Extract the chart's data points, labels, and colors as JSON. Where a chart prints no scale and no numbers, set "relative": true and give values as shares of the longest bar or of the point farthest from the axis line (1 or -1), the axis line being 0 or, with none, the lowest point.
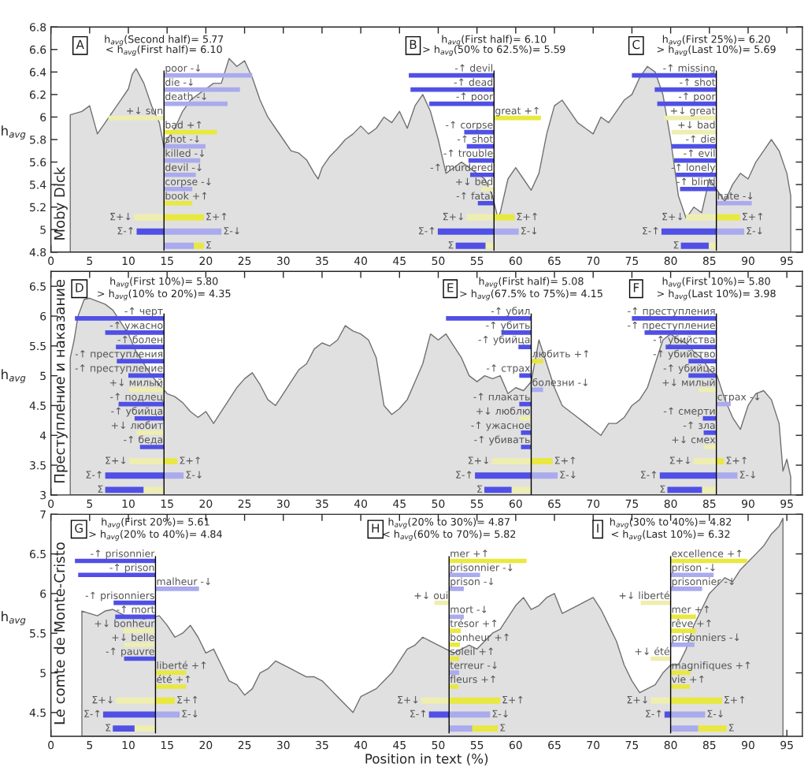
{
  "chart_data": [
    {
      "type": "area",
      "color": "#e0e0e0",
      "ylabel": "h$_{avg}$",
      "annotations": [
        "Moby Dick"
      ],
      "xlim": [
        0,
        97
      ],
      "xticks": [
        0,
        5,
        10,
        15,
        20,
        25,
        30,
        35,
        40,
        45,
        50,
        55,
        60,
        65,
        70,
        75,
        80,
        85,
        90,
        95
      ],
      "ylim": [
        4.8,
        6.8
      ],
      "yticks": [
        4.8,
        5,
        5.2,
        5.4,
        5.6,
        5.8,
        6,
        6.2,
        6.4,
        6.6,
        6.8
      ],
      "x": [
        2.5,
        4,
        5,
        6,
        7,
        8,
        9,
        10,
        10.5,
        11,
        12,
        13,
        14,
        14.6,
        15,
        16,
        17,
        18,
        19,
        20,
        21,
        22,
        23,
        24,
        25,
        26,
        27,
        28,
        29,
        30,
        31,
        32,
        33,
        34,
        34.5,
        35,
        36,
        37,
        38,
        39,
        40,
        41,
        42,
        43,
        44,
        45,
        46,
        47,
        48,
        49,
        50,
        51,
        52,
        53,
        54,
        55,
        56,
        57,
        57.7,
        58,
        59,
        60,
        61,
        62,
        63,
        64,
        65,
        66,
        67,
        68,
        69,
        70,
        71,
        72,
        73,
        74,
        75,
        76,
        77,
        78,
        79,
        80,
        81,
        82,
        83,
        84,
        85,
        86,
        87,
        88,
        89,
        90,
        91,
        92,
        93,
        94,
        95,
        95.5
      ],
      "values": [
        6.02,
        6.05,
        6.1,
        5.85,
        5.95,
        6.05,
        6.15,
        6.25,
        6.38,
        6.43,
        6.3,
        6.1,
        5.95,
        5.73,
        5.8,
        5.9,
        6.05,
        6.15,
        6.2,
        6.25,
        6.3,
        6.3,
        6.52,
        6.45,
        6.5,
        6.35,
        6.15,
        6.0,
        5.9,
        5.8,
        5.7,
        5.68,
        5.62,
        5.5,
        5.45,
        5.55,
        5.65,
        5.72,
        5.8,
        5.85,
        5.92,
        5.85,
        5.9,
        6.0,
        5.95,
        6.05,
        5.9,
        6.1,
        6.2,
        6.05,
        5.8,
        5.5,
        5.55,
        5.6,
        5.55,
        5.5,
        5.45,
        5.3,
        5.1,
        5.15,
        5.45,
        5.55,
        5.45,
        5.35,
        5.5,
        5.85,
        6.1,
        6.15,
        6.05,
        5.95,
        5.9,
        5.85,
        6.0,
        5.95,
        6.05,
        6.15,
        6.2,
        6.35,
        6.45,
        6.4,
        6.2,
        5.8,
        5.3,
        5.1,
        5.2,
        5.15,
        5.45,
        5.35,
        5.25,
        5.4,
        5.5,
        5.45,
        5.6,
        5.7,
        5.8,
        5.7,
        5.5,
        5.3
      ]
    },
    {
      "type": "bar",
      "orientation": "horizontal",
      "stacked": true,
      "relative": true,
      "categories": [
        "poor -↓",
        "die -↓",
        "death -↓",
        "+↓ sun",
        "bad +↑",
        "shot -↓",
        "killed -↓",
        "devil -↓",
        "corpse -↓",
        "book +↑",
        null,
        null,
        null
      ],
      "series": [
        {
          "values": [
            1,
            0.86,
            0.72,
            -0.63,
            0.6,
            0.47,
            0.41,
            0.36,
            0.32,
            0.32,
            0.45,
            0.65,
            0.34
          ],
          "colors": [
            "#aaaaee",
            "#aaaaee",
            "#aaaaee",
            "#eeeeb0",
            "#e8e840",
            "#aaaaee",
            "#aaaaee",
            "#aaaaee",
            "#aaaaee",
            "#e8e840",
            "#e8e840",
            "#aaaaee",
            "#aaaaee"
          ]
        },
        {
          "values": [
            null,
            null,
            null,
            null,
            null,
            null,
            null,
            null,
            null,
            null,
            -0.34,
            -0.31,
            0.11
          ],
          "colors": [
            null,
            null,
            null,
            null,
            null,
            null,
            null,
            null,
            null,
            null,
            "#eeeeb0",
            "#5050e6",
            "#e8e840"
          ]
        }
      ],
      "annotations": [
        "A",
        "h$_{avg}$(Second half)= 5.77",
        "< h$_{avg}$(First half)= 6.10",
        "Σ+↓",
        "Σ+↑",
        "Σ-↑",
        "Σ-↓",
        "Σ"
      ]
    },
    {
      "type": "bar",
      "orientation": "horizontal",
      "stacked": true,
      "relative": true,
      "categories": [
        "-↑ devil",
        "-↑ dead",
        "-↑ poor",
        "great +↑",
        "-↑ corpse",
        "-↑ shot",
        "-↑ trouble",
        "-↑ murdered",
        "+↓ bed",
        "-↑ fatal",
        null,
        null,
        null
      ],
      "series": [
        {
          "values": [
            -1,
            -0.98,
            -0.76,
            0.55,
            -0.35,
            -0.32,
            -0.3,
            -0.28,
            -0.15,
            -0.19,
            0.24,
            0.29,
            -0.1
          ],
          "colors": [
            "#5050e6",
            "#5050e6",
            "#5050e6",
            "#e8e840",
            "#5050e6",
            "#5050e6",
            "#5050e6",
            "#5050e6",
            "#eeeeb0",
            "#5050e6",
            "#e8e840",
            "#aaaaee",
            "#eeeeb0"
          ]
        },
        {
          "values": [
            null,
            null,
            null,
            null,
            null,
            null,
            null,
            null,
            null,
            null,
            -0.32,
            -0.66,
            -0.35
          ],
          "colors": [
            null,
            null,
            null,
            null,
            null,
            null,
            null,
            null,
            null,
            null,
            "#eeeeb0",
            "#5050e6",
            "#5050e6"
          ]
        }
      ],
      "annotations": [
        "B",
        "h$_{avg}$(First half)= 6.10",
        "> h$_{avg}$(50% to 62.5%)= 5.59",
        "Σ+↓",
        "Σ+↑",
        "Σ-↑",
        "Σ-↓",
        "Σ"
      ]
    },
    {
      "type": "bar",
      "orientation": "horizontal",
      "stacked": true,
      "relative": true,
      "categories": [
        "-↑ missing",
        "-↑ shot",
        "-↑ poor",
        "+↓ great",
        "+↓ bad",
        "-↑ die",
        "-↑ evil",
        "-↑ lonely",
        "-↑ blind",
        "hate -↓",
        null,
        null,
        null
      ],
      "series": [
        {
          "values": [
            -1,
            -0.73,
            -0.7,
            -0.62,
            -0.53,
            -0.53,
            -0.5,
            -0.48,
            -0.43,
            0.42,
            0.28,
            0.33,
            -0.09
          ],
          "colors": [
            "#5050e6",
            "#5050e6",
            "#5050e6",
            "#eeeeb0",
            "#eeeeb0",
            "#5050e6",
            "#5050e6",
            "#5050e6",
            "#5050e6",
            "#aaaaee",
            "#e8e840",
            "#aaaaee",
            "#eeeeb0"
          ]
        },
        {
          "values": [
            null,
            null,
            null,
            null,
            null,
            null,
            null,
            null,
            null,
            null,
            -0.36,
            -0.65,
            -0.33
          ],
          "colors": [
            null,
            null,
            null,
            null,
            null,
            null,
            null,
            null,
            null,
            null,
            "#eeeeb0",
            "#5050e6",
            "#5050e6"
          ]
        }
      ],
      "annotations": [
        "C",
        "h$_{avg}$(First 25%)= 6.20",
        "> h$_{avg}$(Last 10%)= 5.69",
        "Σ+↓",
        "Σ+↑",
        "Σ-↑",
        "Σ-↓",
        "Σ"
      ]
    },
    {
      "type": "area",
      "color": "#e0e0e0",
      "ylabel": "h$_{avg}$",
      "annotations": [
        "Преступление и наказание"
      ],
      "xlim": [
        0,
        97
      ],
      "xticks": [
        0,
        5,
        10,
        15,
        20,
        25,
        30,
        35,
        40,
        45,
        50,
        55,
        60,
        65,
        70,
        75,
        80,
        85,
        90,
        95
      ],
      "ylim": [
        3,
        6.75
      ],
      "yticks": [
        3,
        3.5,
        4,
        4.5,
        5,
        5.5,
        6,
        6.5
      ],
      "x": [
        2.5,
        3,
        3.5,
        4.3,
        5,
        6,
        7,
        8,
        9,
        10,
        11,
        12,
        13,
        14,
        15,
        16,
        17,
        18,
        19,
        20,
        21,
        22,
        23,
        24,
        25,
        26,
        27,
        28,
        29,
        30,
        31,
        32,
        33,
        34,
        35,
        36,
        37,
        38,
        39,
        40,
        41,
        42,
        43,
        44,
        45,
        46,
        47,
        48,
        49,
        50,
        51,
        52,
        53,
        54,
        55,
        56,
        57,
        58,
        59,
        60,
        61,
        62,
        63,
        64,
        65,
        66,
        67,
        68,
        69,
        70,
        71,
        72,
        73,
        74,
        75,
        76,
        77,
        78,
        79,
        80,
        81,
        82,
        83,
        84,
        85,
        86,
        87,
        88,
        89,
        90,
        91,
        92,
        93,
        94,
        94.5,
        95,
        95.5
      ],
      "values": [
        5.3,
        5.6,
        6.0,
        6.28,
        6.3,
        6.25,
        6.2,
        6.1,
        5.9,
        5.7,
        5.4,
        5.2,
        5.0,
        4.85,
        4.7,
        4.65,
        4.55,
        4.4,
        4.3,
        4.4,
        4.2,
        4.4,
        4.6,
        4.8,
        4.95,
        5.05,
        4.85,
        4.6,
        4.5,
        4.7,
        4.9,
        5.1,
        5.2,
        5.45,
        5.55,
        5.5,
        5.6,
        5.84,
        5.75,
        5.7,
        5.6,
        5.3,
        4.5,
        4.35,
        4.45,
        4.6,
        4.9,
        5.2,
        5.7,
        5.6,
        5.7,
        5.5,
        5.3,
        5.0,
        4.9,
        5.0,
        4.95,
        5.0,
        4.7,
        4.8,
        4.75,
        4.9,
        5.6,
        5.2,
        4.8,
        4.5,
        4.4,
        4.3,
        4.2,
        4.1,
        4.0,
        4.2,
        4.2,
        4.3,
        4.5,
        4.6,
        4.8,
        5.2,
        5.6,
        5.7,
        5.6,
        5.55,
        5.4,
        5.3,
        5.1,
        5.0,
        4.6,
        4.3,
        4.1,
        4.5,
        4.7,
        4.75,
        4.6,
        4.2,
        3.4,
        3.6,
        3.3
      ]
    },
    {
      "type": "bar",
      "orientation": "horizontal",
      "stacked": true,
      "relative": true,
      "categories": [
        "-↑ черт",
        "-↑ ужасно",
        "-↑ болен",
        "-↑ преступления",
        "-↑ преступление",
        "+↓ милый",
        "-↑ подлец",
        "-↑ убийца",
        "+↓ любит",
        "-↑ беда",
        null,
        null,
        null
      ],
      "series": [
        {
          "values": [
            -1,
            -0.66,
            -0.54,
            -0.53,
            -0.4,
            -0.39,
            -0.51,
            -0.33,
            -0.31,
            -0.27,
            0.15,
            0.22,
            -0.23
          ],
          "colors": [
            "#5050e6",
            "#5050e6",
            "#5050e6",
            "#5050e6",
            "#5050e6",
            "#eeeeb0",
            "#5050e6",
            "#5050e6",
            "#eeeeb0",
            "#5050e6",
            "#e8e840",
            "#aaaaee",
            "#eeeeb0"
          ]
        },
        {
          "values": [
            null,
            null,
            null,
            null,
            null,
            null,
            null,
            null,
            null,
            null,
            -0.39,
            -0.66,
            -0.43
          ],
          "colors": [
            null,
            null,
            null,
            null,
            null,
            null,
            null,
            null,
            null,
            null,
            "#eeeeb0",
            "#5050e6",
            "#5050e6"
          ]
        }
      ],
      "annotations": [
        "D",
        "h$_{avg}$(First 10%)= 5.80",
        "> h$_{avg}$(10% to 20%)= 4.35",
        "Σ+↓",
        "Σ+↑",
        "Σ-↑",
        "Σ-↓",
        "Σ"
      ]
    },
    {
      "type": "bar",
      "orientation": "horizontal",
      "stacked": true,
      "relative": true,
      "categories": [
        "-↑ убил",
        "-↑ убить",
        "-↑ убийца",
        "любить +↑",
        "-↑ страх",
        "болезни -↓",
        "-↑ плакать",
        "+↓ люблю",
        "-↑ ужасное",
        "-↑ убивать",
        null,
        null,
        null
      ],
      "series": [
        {
          "values": [
            -1,
            -0.35,
            -0.15,
            0.14,
            -0.14,
            0.14,
            -0.14,
            -0.14,
            -0.12,
            -0.12,
            0.25,
            0.31,
            -0.23
          ],
          "colors": [
            "#5050e6",
            "#5050e6",
            "#5050e6",
            "#e8e840",
            "#5050e6",
            "#aaaaee",
            "#5050e6",
            "#eeeeb0",
            "#5050e6",
            "#5050e6",
            "#e8e840",
            "#aaaaee",
            "#eeeeb0"
          ]
        },
        {
          "values": [
            null,
            null,
            null,
            null,
            null,
            null,
            null,
            null,
            null,
            null,
            -0.46,
            -0.66,
            -0.32
          ],
          "colors": [
            null,
            null,
            null,
            null,
            null,
            null,
            null,
            null,
            null,
            null,
            "#eeeeb0",
            "#5050e6",
            "#5050e6"
          ]
        }
      ],
      "annotations": [
        "E",
        "h$_{avg}$(First half)= 5.08",
        "> h$_{avg}$(67.5% to 75%)= 4.15",
        "Σ+↓",
        "Σ+↑",
        "Σ-↑",
        "Σ-↓",
        "Σ"
      ]
    },
    {
      "type": "bar",
      "orientation": "horizontal",
      "stacked": true,
      "relative": true,
      "categories": [
        "-↑ преступления",
        "-↑ преступление",
        "-↑ убийства",
        "-↑ убийство",
        "-↑ убийца",
        "+↓ милый",
        "страх -↓",
        "-↑ смерти",
        "-↑ зла",
        "+↓ смех",
        null,
        null,
        null
      ],
      "series": [
        {
          "values": [
            -1,
            -0.85,
            -0.6,
            -0.33,
            -0.33,
            -0.21,
            0.17,
            -0.16,
            -0.15,
            -0.14,
            0.09,
            0.25,
            -0.17
          ],
          "colors": [
            "#5050e6",
            "#5050e6",
            "#5050e6",
            "#5050e6",
            "#5050e6",
            "#eeeeb0",
            "#aaaaee",
            "#5050e6",
            "#5050e6",
            "#eeeeb0",
            "#e8e840",
            "#aaaaee",
            "#eeeeb0"
          ]
        },
        {
          "values": [
            null,
            null,
            null,
            null,
            null,
            null,
            null,
            null,
            null,
            null,
            -0.27,
            -0.67,
            -0.41
          ],
          "colors": [
            null,
            null,
            null,
            null,
            null,
            null,
            null,
            null,
            null,
            null,
            "#eeeeb0",
            "#5050e6",
            "#5050e6"
          ]
        }
      ],
      "annotations": [
        "F",
        "h$_{avg}$(First 10%)= 5.80",
        "> h$_{avg}$(Last 10%)= 3.98",
        "Σ+↓",
        "Σ+↑",
        "Σ-↑",
        "Σ-↓",
        "Σ"
      ]
    },
    {
      "type": "area",
      "color": "#e0e0e0",
      "ylabel": "h$_{avg}$",
      "xlabel": "Position in text (%)",
      "annotations": [
        "Le comte de Monte-Cristo"
      ],
      "xlim": [
        0,
        97
      ],
      "xticks": [
        0,
        5,
        10,
        15,
        20,
        25,
        30,
        35,
        40,
        45,
        50,
        55,
        60,
        65,
        70,
        75,
        80,
        85,
        90,
        95
      ],
      "ylim": [
        4.2,
        7
      ],
      "yticks": [
        4.5,
        5,
        5.5,
        6,
        6.5,
        7
      ],
      "x": [
        4,
        5,
        6,
        7,
        8,
        9,
        10,
        11,
        12,
        13,
        14,
        15,
        16,
        17,
        18,
        19,
        20,
        21,
        22,
        23,
        24,
        25,
        26,
        27,
        28,
        29,
        30,
        31,
        32,
        33,
        34,
        35,
        36,
        37,
        38,
        39,
        40,
        41,
        42,
        43,
        44,
        45,
        46,
        47,
        48,
        49,
        50,
        51,
        52,
        53,
        54,
        55,
        56,
        57,
        58,
        59,
        60,
        61,
        62,
        63,
        64,
        65,
        66,
        67,
        68,
        69,
        70,
        71,
        72,
        73,
        74,
        75,
        76,
        77,
        78,
        79,
        80,
        81,
        82,
        83,
        84,
        85,
        86,
        87,
        88,
        89,
        90,
        91,
        92,
        93,
        94,
        94.5
      ],
      "values": [
        5.78,
        5.75,
        5.72,
        5.78,
        5.8,
        5.75,
        5.7,
        5.7,
        5.68,
        5.7,
        5.72,
        5.6,
        5.45,
        5.5,
        5.6,
        5.45,
        5.25,
        5.3,
        5.1,
        4.9,
        4.85,
        4.72,
        4.8,
        5.0,
        5.05,
        5.15,
        5.1,
        5.05,
        5.0,
        4.95,
        4.95,
        4.9,
        4.8,
        4.7,
        4.6,
        4.5,
        4.7,
        4.75,
        4.8,
        4.9,
        5.0,
        5.15,
        5.3,
        5.35,
        5.45,
        5.4,
        5.35,
        5.3,
        5.25,
        5.3,
        5.35,
        5.3,
        5.4,
        5.5,
        5.55,
        5.7,
        5.85,
        5.95,
        5.8,
        5.85,
        5.95,
        6.0,
        5.75,
        5.8,
        5.85,
        5.9,
        5.95,
        5.8,
        5.6,
        5.4,
        5.1,
        4.9,
        4.75,
        4.8,
        4.85,
        5.0,
        5.1,
        5.1,
        5.3,
        5.6,
        5.8,
        6.0,
        6.1,
        6.2,
        6.15,
        6.3,
        6.4,
        6.5,
        6.6,
        6.75,
        6.85,
        6.95
      ]
    },
    {
      "type": "bar",
      "orientation": "horizontal",
      "stacked": true,
      "relative": true,
      "categories": [
        "-↑ prisonnier",
        "-↑ prison",
        "malheur -↓",
        "-↑ prisonniers",
        "-↑ mort",
        "+↓ bonheur",
        "+↓ belle",
        "-↑ pauvre",
        "liberté +↑",
        "été +↑",
        null,
        null,
        null
      ],
      "series": [
        {
          "values": [
            -1,
            -0.96,
            0.54,
            -0.52,
            -0.5,
            -0.4,
            -0.39,
            -0.39,
            0.38,
            0.38,
            0.24,
            0.3,
            -0.26
          ],
          "colors": [
            "#5050e6",
            "#5050e6",
            "#aaaaee",
            "#5050e6",
            "#5050e6",
            "#eeeeb0",
            "#eeeeb0",
            "#5050e6",
            "#e8e840",
            "#e8e840",
            "#e8e840",
            "#aaaaee",
            "#eeeeb0"
          ]
        },
        {
          "values": [
            null,
            null,
            null,
            null,
            null,
            null,
            null,
            null,
            null,
            null,
            -0.49,
            -0.65,
            -0.27
          ],
          "colors": [
            null,
            null,
            null,
            null,
            null,
            null,
            null,
            null,
            null,
            null,
            "#eeeeb0",
            "#5050e6",
            "#5050e6"
          ]
        }
      ],
      "annotations": [
        "G",
        "h$_{avg}$(First 20%)= 5.61",
        "> h$_{avg}$(20% to 40%)= 4.84",
        "Σ+↓",
        "Σ+↑",
        "Σ-↑",
        "Σ-↓",
        "Σ"
      ]
    },
    {
      "type": "bar",
      "orientation": "horizontal",
      "stacked": true,
      "relative": true,
      "categories": [
        "mer +↑",
        "prisonnier -↓",
        "prison -↓",
        "+↓ oui",
        "mort -↓",
        "trésor +↑",
        "bonheur +↑",
        "soleil +↑",
        "terreur -↓",
        "fleurs +↑",
        null,
        null,
        null
      ],
      "series": [
        {
          "values": [
            1,
            0.4,
            0.19,
            -0.19,
            0.19,
            0.15,
            0.14,
            0.13,
            0.13,
            0.12,
            0.66,
            0.53,
            0.3
          ],
          "colors": [
            "#e8e840",
            "#aaaaee",
            "#aaaaee",
            "#eeeeb0",
            "#aaaaee",
            "#e8e840",
            "#e8e840",
            "#e8e840",
            "#aaaaee",
            "#e8e840",
            "#e8e840",
            "#aaaaee",
            "#aaaaee"
          ]
        },
        {
          "values": [
            null,
            null,
            null,
            null,
            null,
            null,
            null,
            null,
            null,
            null,
            -0.36,
            -0.26,
            0.33
          ],
          "colors": [
            null,
            null,
            null,
            null,
            null,
            null,
            null,
            null,
            null,
            null,
            "#eeeeb0",
            "#5050e6",
            "#e8e840"
          ]
        }
      ],
      "annotations": [
        "H",
        "h$_{avg}$(20% to 30%)= 4.87",
        "< h$_{avg}$(60% to 70%)= 5.82",
        "Σ+↓",
        "Σ+↑",
        "Σ-↑",
        "Σ-↓",
        "Σ"
      ]
    },
    {
      "type": "bar",
      "orientation": "horizontal",
      "stacked": true,
      "relative": true,
      "categories": [
        "excellence +↑",
        "prison -↓",
        "prisonnier -↓",
        "+↓ liberté",
        "mer +↑",
        "rêve +↑",
        "prisonniers -↓",
        "+↓ été",
        "magnifiques +↑",
        "vie +↑",
        null,
        null,
        null
      ],
      "series": [
        {
          "values": [
            1,
            0.56,
            0.41,
            -0.39,
            0.33,
            0.33,
            0.31,
            -0.26,
            0.26,
            0.25,
            0.67,
            0.45,
            0.36
          ],
          "colors": [
            "#e8e840",
            "#aaaaee",
            "#aaaaee",
            "#eeeeb0",
            "#e8e840",
            "#e8e840",
            "#aaaaee",
            "#eeeeb0",
            "#e8e840",
            "#e8e840",
            "#e8e840",
            "#aaaaee",
            "#aaaaee"
          ]
        },
        {
          "values": [
            null,
            null,
            null,
            null,
            null,
            null,
            null,
            null,
            null,
            null,
            -0.26,
            -0.08,
            0.37
          ],
          "colors": [
            null,
            null,
            null,
            null,
            null,
            null,
            null,
            null,
            null,
            null,
            "#eeeeb0",
            "#5050e6",
            "#e8e840"
          ]
        }
      ],
      "annotations": [
        "I",
        "h$_{avg}$(30% to 40%)= 4.82",
        "< h$_{avg}$(Last 10%)= 6.32",
        "Σ+↓",
        "Σ+↑",
        "Σ-↑",
        "Σ-↓",
        "Σ"
      ]
    }
  ]
}
